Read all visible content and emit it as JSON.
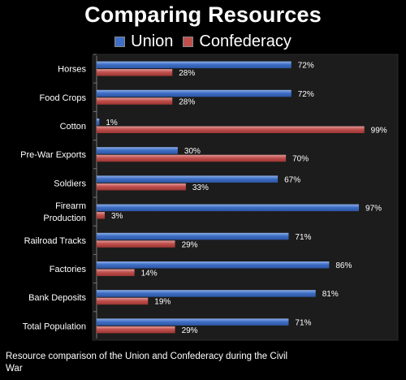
{
  "chart_data": {
    "type": "bar",
    "orientation": "horizontal",
    "title": "Comparing Resources",
    "categories": [
      "Horses",
      "Food Crops",
      "Cotton",
      "Pre-War Exports",
      "Soldiers",
      "Firearm Production",
      "Railroad Tracks",
      "Factories",
      "Bank Deposits",
      "Total Population"
    ],
    "category_lines": [
      [
        "Horses"
      ],
      [
        "Food Crops"
      ],
      [
        "Cotton"
      ],
      [
        "Pre-War Exports"
      ],
      [
        "Soldiers"
      ],
      [
        "Firearm",
        "Production"
      ],
      [
        "Railroad Tracks"
      ],
      [
        "Factories"
      ],
      [
        "Bank Deposits"
      ],
      [
        "Total Population"
      ]
    ],
    "series": [
      {
        "name": "Union",
        "color": "#3f6fc4",
        "values": [
          72,
          72,
          1,
          30,
          67,
          97,
          71,
          86,
          81,
          71
        ],
        "labels": [
          "72%",
          "72%",
          "1%",
          "30%",
          "67%",
          "97%",
          "71%",
          "86%",
          "81%",
          "71%"
        ]
      },
      {
        "name": "Confederacy",
        "color": "#c0504d",
        "values": [
          28,
          28,
          99,
          70,
          33,
          3,
          29,
          14,
          19,
          29
        ],
        "labels": [
          "28%",
          "28%",
          "99%",
          "70%",
          "33%",
          "3%",
          "29%",
          "14%",
          "19%",
          "29%"
        ]
      }
    ],
    "xlim": [
      0,
      100
    ],
    "legend_position": "top",
    "grid": false
  },
  "caption": "Resource comparison of the Union and Confederacy during the Civil War",
  "colors": {
    "background": "#000000",
    "plot_area": "#1c1c1c",
    "text": "#ffffff"
  }
}
